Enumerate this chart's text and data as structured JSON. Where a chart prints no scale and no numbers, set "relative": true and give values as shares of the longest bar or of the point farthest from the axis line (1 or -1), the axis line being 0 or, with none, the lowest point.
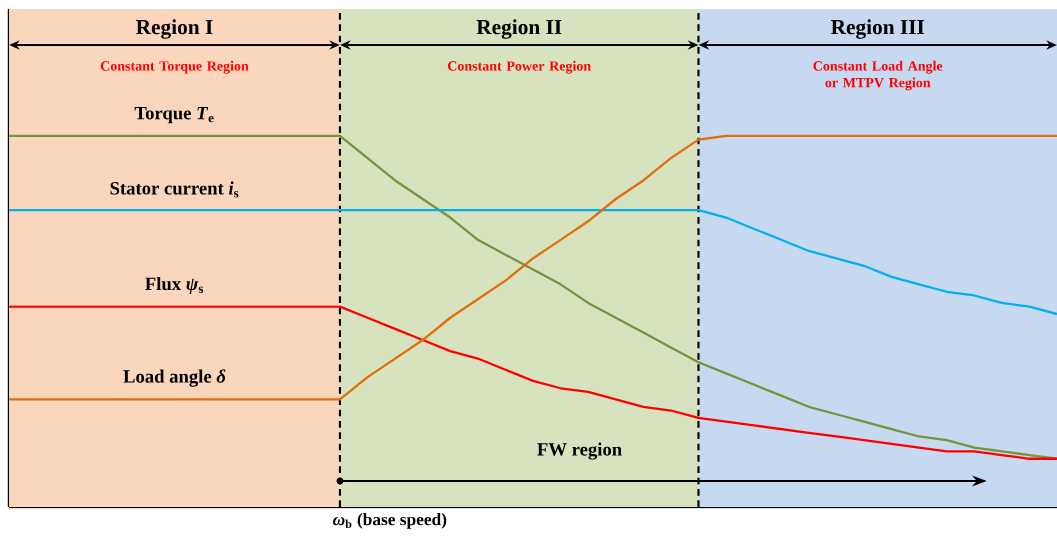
{
  "chart_data": {
    "type": "line",
    "relative": true,
    "tick_labels": false,
    "legend": false,
    "line_style": "solid",
    "categories": [
      null,
      null,
      null,
      null,
      null,
      null,
      null,
      null,
      null,
      null,
      null,
      null,
      null,
      null,
      null,
      null,
      null,
      null,
      null,
      null,
      null,
      null,
      null,
      null,
      null,
      null,
      null,
      null,
      null,
      null,
      null,
      null,
      null,
      null,
      null,
      null,
      null,
      null,
      null
    ],
    "series": [
      {
        "name": "Torque *T*$_{e}$",
        "color": "#77933c",
        "values": [
          1,
          1,
          1,
          1,
          1,
          1,
          1,
          1,
          1,
          1,
          1,
          1,
          1,
          0.94,
          0.88,
          0.83,
          0.78,
          0.72,
          0.68,
          0.64,
          0.6,
          0.55,
          0.51,
          0.47,
          0.43,
          0.39,
          0.36,
          0.33,
          0.3,
          0.27,
          0.25,
          0.23,
          0.21,
          0.19,
          0.18,
          0.16,
          0.15,
          0.14,
          0.13
        ]
      },
      {
        "name": "Stator current *i*$_{s}$",
        "color": "#00b0f0",
        "values": [
          0.8,
          0.8,
          0.8,
          0.8,
          0.8,
          0.8,
          0.8,
          0.8,
          0.8,
          0.8,
          0.8,
          0.8,
          0.8,
          0.8,
          0.8,
          0.8,
          0.8,
          0.8,
          0.8,
          0.8,
          0.8,
          0.8,
          0.8,
          0.8,
          0.8,
          0.8,
          0.78,
          0.75,
          0.72,
          0.69,
          0.67,
          0.65,
          0.62,
          0.6,
          0.58,
          0.57,
          0.55,
          0.54,
          0.52
        ]
      },
      {
        "name": "Flux *ψ*$_{s}$",
        "color": "#ff0000",
        "values": [
          0.54,
          0.54,
          0.54,
          0.54,
          0.54,
          0.54,
          0.54,
          0.54,
          0.54,
          0.54,
          0.54,
          0.54,
          0.54,
          0.51,
          0.48,
          0.45,
          0.42,
          0.4,
          0.37,
          0.34,
          0.32,
          0.31,
          0.29,
          0.27,
          0.26,
          0.24,
          0.23,
          0.22,
          0.21,
          0.2,
          0.19,
          0.18,
          0.17,
          0.16,
          0.15,
          0.15,
          0.14,
          0.13,
          0.13
        ]
      },
      {
        "name": "Load angle *δ*",
        "color": "#e46c0a",
        "values": [
          0.29,
          0.29,
          0.29,
          0.29,
          0.29,
          0.29,
          0.29,
          0.29,
          0.29,
          0.29,
          0.29,
          0.29,
          0.29,
          0.35,
          0.4,
          0.45,
          0.51,
          0.56,
          0.61,
          0.67,
          0.72,
          0.77,
          0.83,
          0.88,
          0.94,
          0.99,
          1,
          1,
          1,
          1,
          1,
          1,
          1,
          1,
          1,
          1,
          1,
          1,
          1
        ]
      }
    ],
    "annotations": [
      "Region I",
      "Constant Torque Region",
      "Region II",
      "Constant Power Region",
      "Region III",
      "Constant Load Angle or MTPV Region",
      "FW region",
      "*ω*$_{b}$ (base speed)"
    ]
  }
}
